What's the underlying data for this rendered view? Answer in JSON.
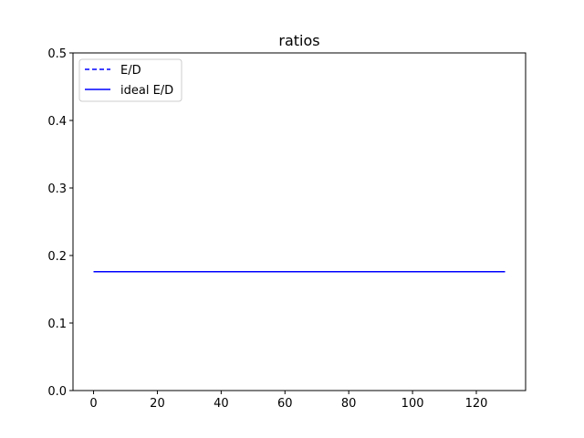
{
  "chart_data": {
    "type": "line",
    "title": "ratios",
    "xlabel": "",
    "ylabel": "",
    "xlim": [
      -6.45,
      135.45
    ],
    "ylim": [
      0,
      0.5
    ],
    "xticks": [
      0,
      20,
      40,
      60,
      80,
      100,
      120
    ],
    "xtick_labels": [
      "0",
      "20",
      "40",
      "60",
      "80",
      "100",
      "120"
    ],
    "yticks": [
      0.0,
      0.1,
      0.2,
      0.3,
      0.4,
      0.5
    ],
    "ytick_labels": [
      "0.0",
      "0.1",
      "0.2",
      "0.3",
      "0.4",
      "0.5"
    ],
    "grid": false,
    "legend_position": "upper-left",
    "series": [
      {
        "name": "E/D",
        "style": "dashed",
        "color": "#0000ff",
        "x": [
          0,
          129
        ],
        "y": [
          0.176,
          0.176
        ]
      },
      {
        "name": "ideal E/D",
        "style": "solid",
        "color": "#0000ff",
        "x": [
          0,
          129
        ],
        "y": [
          0.176,
          0.176
        ]
      }
    ]
  }
}
